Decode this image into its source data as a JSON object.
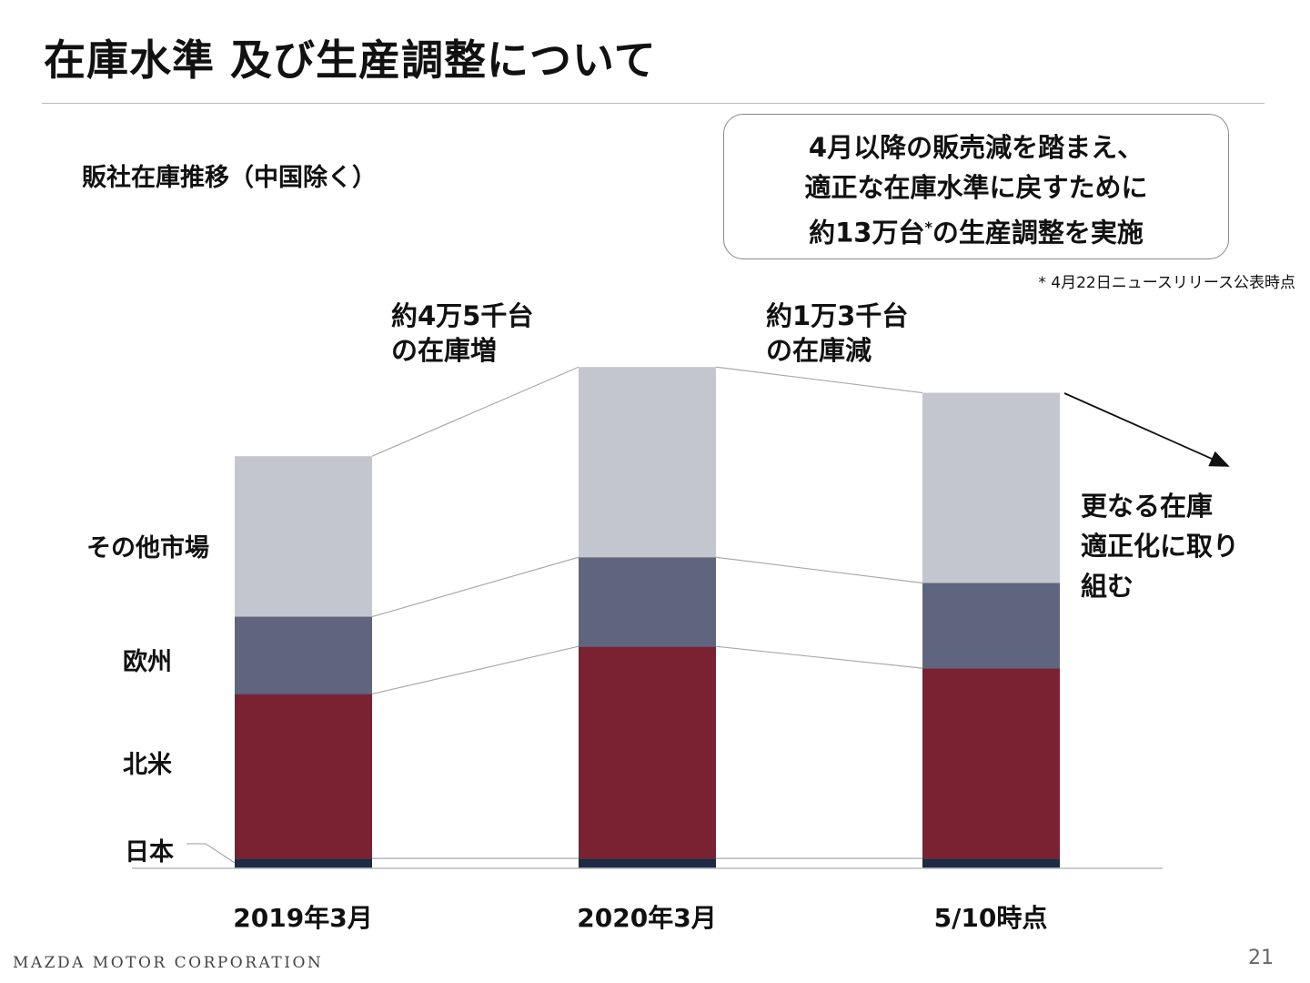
{
  "title": "在庫水準 及び生産調整について",
  "subtitle": "販社在庫推移（中国除く）",
  "callout": {
    "line1": "4月以降の販売減を踏まえ、",
    "line2": "適正な在庫水準に戻すために",
    "line3a": "約13万台",
    "line3sup": "*",
    "line3b": "の生産調整を実施"
  },
  "footnote": "* 4月22日ニュースリリース公表時点",
  "annotations": {
    "increase_l1": "約4万5千台",
    "increase_l2": "の在庫増",
    "decrease_l1": "約1万3千台",
    "decrease_l2": "の在庫減",
    "further_l1": "更なる在庫",
    "further_l2": "適正化に取り",
    "further_l3": "組む"
  },
  "footer": {
    "company": "MAZDA MOTOR CORPORATION",
    "page": "21"
  },
  "chart_data": {
    "type": "bar",
    "stacked": true,
    "categories": [
      "2019年3月",
      "2020年3月",
      "5/10時点"
    ],
    "series": [
      {
        "name": "日本",
        "values": [
          5,
          5,
          5
        ],
        "color": "#1c2a44"
      },
      {
        "name": "北米",
        "values": [
          83,
          107,
          96
        ],
        "color": "#7a2232"
      },
      {
        "name": "欧州",
        "values": [
          39,
          45,
          43
        ],
        "color": "#5f657e"
      },
      {
        "name": "その他市場",
        "values": [
          81,
          96,
          96
        ],
        "color": "#c3c5cf"
      }
    ],
    "ylim": [
      0,
      260
    ],
    "grid": false,
    "legend": "left, labels beside first bar"
  }
}
